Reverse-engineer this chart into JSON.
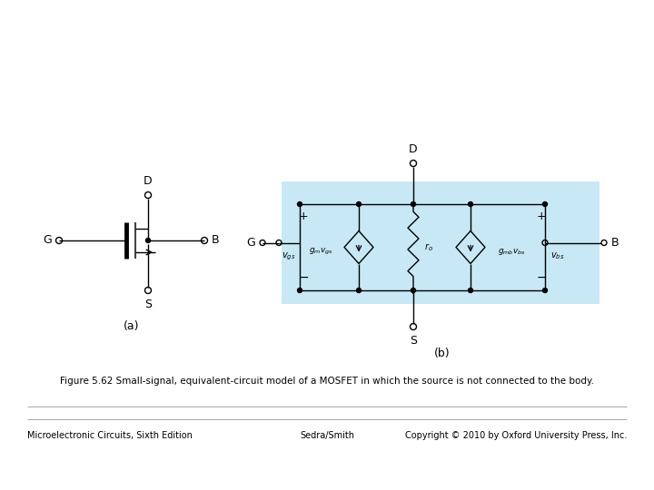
{
  "title_caption": "Figure 5.62 Small-signal, equivalent-circuit model of a MOSFET in which the source is not connected to the body.",
  "footer_left": "Microelectronic Circuits, Sixth Edition",
  "footer_center": "Sedra/Smith",
  "footer_right": "Copyright © 2010 by Oxford University Press, Inc.",
  "label_a": "(a)",
  "label_b": "(b)",
  "bg_color": "#c8e8f5",
  "line_color": "#000000",
  "text_color": "#000000",
  "gray_line": "#999999"
}
